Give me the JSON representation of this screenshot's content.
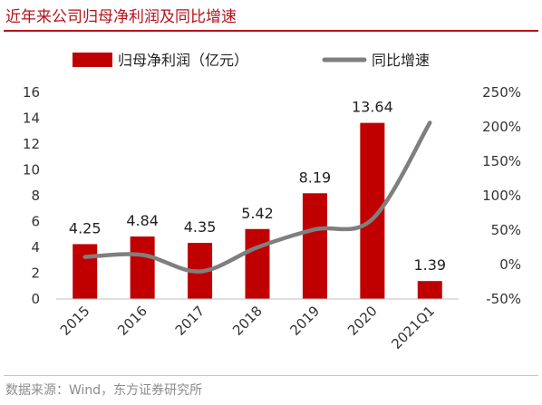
{
  "header": {
    "title": "近年来公司归母净利润及同比增速"
  },
  "footer": {
    "source": "数据来源：Wind，东方证券研究所"
  },
  "colors": {
    "bar": "#c00000",
    "line": "#7f7f7f",
    "title": "#b5121b",
    "axis": "#bfbfbf"
  },
  "chart_data": {
    "type": "bar",
    "title": "近年来公司归母净利润及同比增速",
    "categories": [
      "2015",
      "2016",
      "2017",
      "2018",
      "2019",
      "2020",
      "2021Q1"
    ],
    "series": [
      {
        "name": "归母净利润（亿元）",
        "type": "bar",
        "axis": "left",
        "values": [
          4.25,
          4.84,
          4.35,
          5.42,
          8.19,
          13.64,
          1.39
        ],
        "labels": [
          "4.25",
          "4.84",
          "4.35",
          "5.42",
          "8.19",
          "13.64",
          "1.39"
        ]
      },
      {
        "name": "同比增速",
        "type": "line",
        "axis": "right",
        "values": [
          11,
          14,
          -10,
          25,
          51,
          66,
          206
        ]
      }
    ],
    "ylim": [
      0,
      16
    ],
    "yticks": [
      0,
      2,
      4,
      6,
      8,
      10,
      12,
      14,
      16
    ],
    "ytick_labels": [
      "0",
      "2",
      "4",
      "6",
      "8",
      "10",
      "12",
      "14",
      "16"
    ],
    "y2lim": [
      -50,
      250
    ],
    "y2ticks": [
      -50,
      0,
      50,
      100,
      150,
      200,
      250
    ],
    "y2tick_labels": [
      "-50%",
      "0%",
      "50%",
      "100%",
      "150%",
      "200%",
      "250%"
    ],
    "legend": {
      "position": "top"
    },
    "grid": false
  }
}
